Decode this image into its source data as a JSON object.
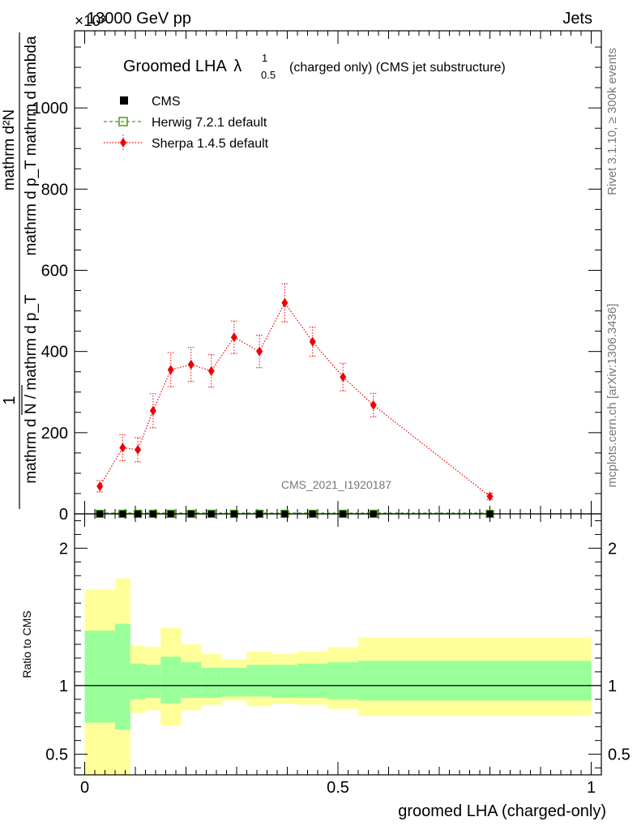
{
  "header": {
    "collision": "13000 GeV pp",
    "process": "Jets",
    "exponent": "×10³"
  },
  "side_labels": {
    "rivet": "Rivet 3.1.10, ≥ 300k events",
    "mcplots": "mcplots.cern.ch [arXiv:1306.3436]"
  },
  "colors": {
    "cms": "#000000",
    "herwig": "#4a9a1a",
    "sherpa": "#ee0000",
    "band_inner": "#99ff99",
    "band_outer": "#ffff99"
  },
  "chart_data": [
    {
      "type": "line",
      "title": "Groomed LHA",
      "title_symbol": "λ",
      "title_sup": "1",
      "title_sub": "0.5",
      "title_suffix": "(charged only) (CMS jet substructure)",
      "watermark": "CMS_2021_I1920187",
      "ylabel_top": "mathrm d²N",
      "ylabel_bottom": "mathrm d p_T mathrm d lambda",
      "ylabel_prefix": "1",
      "ylabel_denominator": "mathrm d N / mathrm d p_T",
      "xlim": [
        -0.02,
        1.02
      ],
      "ylim": [
        0,
        1190
      ],
      "x_ticks": [
        "0",
        "0.5",
        "1"
      ],
      "y_ticks": [
        "0",
        "200",
        "400",
        "600",
        "800",
        "1000"
      ],
      "legend_position": "top-left",
      "series": [
        {
          "name": "CMS",
          "x": [
            0.03,
            0.075,
            0.105,
            0.135,
            0.17,
            0.21,
            0.25,
            0.295,
            0.345,
            0.395,
            0.45,
            0.51,
            0.57,
            0.8
          ],
          "y": [
            0,
            0,
            0,
            0,
            0,
            0,
            0,
            0,
            0,
            0,
            0,
            0,
            0,
            0
          ]
        },
        {
          "name": "Herwig 7.2.1 default",
          "x": [
            0.03,
            0.075,
            0.105,
            0.135,
            0.17,
            0.21,
            0.25,
            0.295,
            0.345,
            0.395,
            0.45,
            0.51,
            0.57,
            0.8
          ],
          "y": [
            0,
            0,
            0,
            0,
            0,
            0,
            0,
            0,
            0,
            0,
            0,
            0,
            0,
            0
          ]
        },
        {
          "name": "Sherpa 1.4.5 default",
          "x": [
            0.03,
            0.075,
            0.105,
            0.135,
            0.17,
            0.21,
            0.25,
            0.295,
            0.345,
            0.395,
            0.45,
            0.51,
            0.57,
            0.8
          ],
          "y": [
            68,
            163,
            158,
            254,
            355,
            368,
            352,
            435,
            400,
            520,
            424,
            337,
            268,
            43
          ],
          "err": [
            14,
            32,
            30,
            42,
            42,
            42,
            40,
            40,
            40,
            47,
            36,
            34,
            29,
            8
          ]
        }
      ]
    },
    {
      "type": "area",
      "ylabel": "Ratio to CMS",
      "xlabel": "groomed LHA (charged-only)",
      "xlim": [
        -0.02,
        1.02
      ],
      "ylim": [
        0.35,
        2.25
      ],
      "y_ticks": [
        "0.5",
        "1",
        "2"
      ],
      "reference": 1,
      "bins": [
        0,
        0.06,
        0.09,
        0.12,
        0.15,
        0.19,
        0.23,
        0.27,
        0.32,
        0.37,
        0.42,
        0.48,
        0.54,
        0.6,
        1.0
      ],
      "inner_band": {
        "low": [
          0.73,
          0.68,
          0.9,
          0.91,
          0.87,
          0.91,
          0.91,
          0.92,
          0.92,
          0.91,
          0.91,
          0.9,
          0.89,
          0.89
        ],
        "high": [
          1.4,
          1.45,
          1.16,
          1.15,
          1.21,
          1.17,
          1.13,
          1.13,
          1.15,
          1.15,
          1.16,
          1.17,
          1.18,
          1.18
        ]
      },
      "outer_band": {
        "low": [
          0.0,
          0.0,
          0.8,
          0.82,
          0.71,
          0.82,
          0.86,
          0.89,
          0.85,
          0.87,
          0.86,
          0.83,
          0.78,
          0.78
        ],
        "high": [
          1.7,
          1.78,
          1.29,
          1.28,
          1.42,
          1.3,
          1.23,
          1.19,
          1.25,
          1.23,
          1.25,
          1.28,
          1.35,
          1.35
        ]
      }
    }
  ]
}
